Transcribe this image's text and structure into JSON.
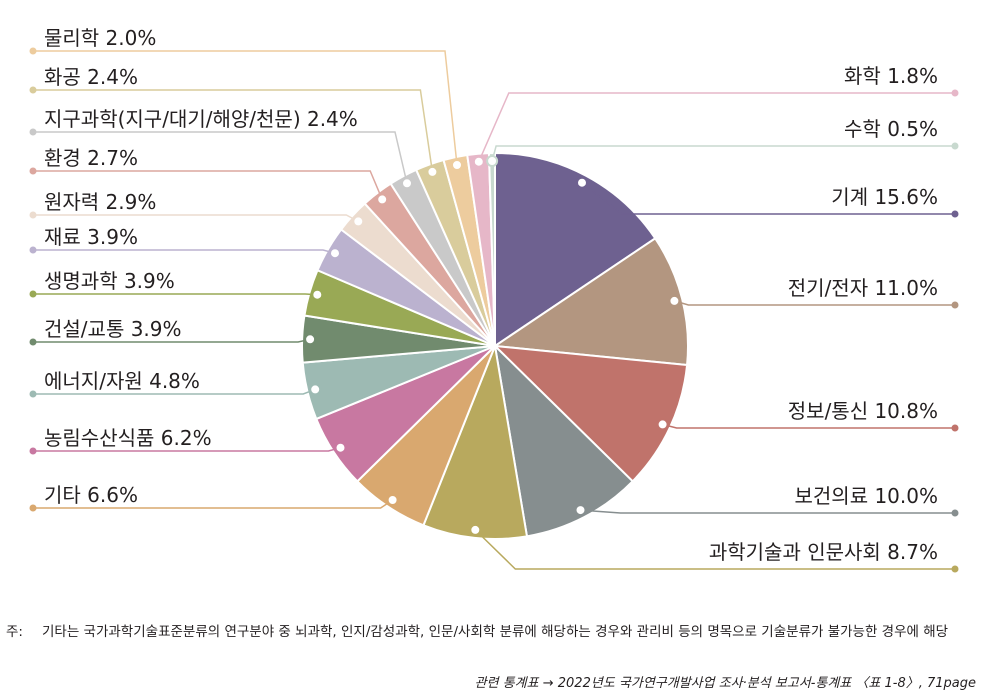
{
  "chart_data": {
    "type": "pie",
    "slices": [
      {
        "label": "기계",
        "value": 15.6,
        "color": "#6e6190",
        "side": "right"
      },
      {
        "label": "전기/전자",
        "value": 11.0,
        "color": "#b39680",
        "side": "right"
      },
      {
        "label": "정보/통신",
        "value": 10.8,
        "color": "#c0736b",
        "side": "right"
      },
      {
        "label": "보건의료",
        "value": 10.0,
        "color": "#868e8f",
        "side": "right"
      },
      {
        "label": "과학기술과 인문사회",
        "value": 8.7,
        "color": "#b8a95e",
        "side": "right"
      },
      {
        "label": "기타",
        "value": 6.6,
        "color": "#d9a86f",
        "side": "left"
      },
      {
        "label": "농림수산식품",
        "value": 6.2,
        "color": "#c878a1",
        "side": "left"
      },
      {
        "label": "에너지/자원",
        "value": 4.8,
        "color": "#9dbab3",
        "side": "left"
      },
      {
        "label": "건설/교통",
        "value": 3.9,
        "color": "#718b6e",
        "side": "left"
      },
      {
        "label": "생명과학",
        "value": 3.9,
        "color": "#99a955",
        "side": "left"
      },
      {
        "label": "재료",
        "value": 3.9,
        "color": "#bbb2cf",
        "side": "left"
      },
      {
        "label": "원자력",
        "value": 2.9,
        "color": "#ecdccf",
        "side": "left"
      },
      {
        "label": "환경",
        "value": 2.7,
        "color": "#dca79f",
        "side": "left"
      },
      {
        "label": "지구과학(지구/대기/해양/천문)",
        "value": 2.4,
        "color": "#c9c9c9",
        "side": "left"
      },
      {
        "label": "화공",
        "value": 2.4,
        "color": "#d9cc9c",
        "side": "left"
      },
      {
        "label": "물리학",
        "value": 2.0,
        "color": "#edcc9e",
        "side": "left"
      },
      {
        "label": "화학",
        "value": 1.8,
        "color": "#e6b7c8",
        "side": "right"
      },
      {
        "label": "수학",
        "value": 0.5,
        "color": "#c8d9cf",
        "side": "right"
      }
    ],
    "unit": "%"
  },
  "footnote": {
    "prefix": "주:",
    "text": "기타는 국가과학기술표준분류의 연구분야 중 뇌과학, 인지/감성과학, 인문/사회학 분류에 해당하는 경우와 관리비 등의 명목으로 기술분류가 불가능한 경우에 해당"
  },
  "source": "관련 통계표 → 2022년도 국가연구개발사업 조사·분석 보고서-통계표 〈표 1-8〉, 71page"
}
